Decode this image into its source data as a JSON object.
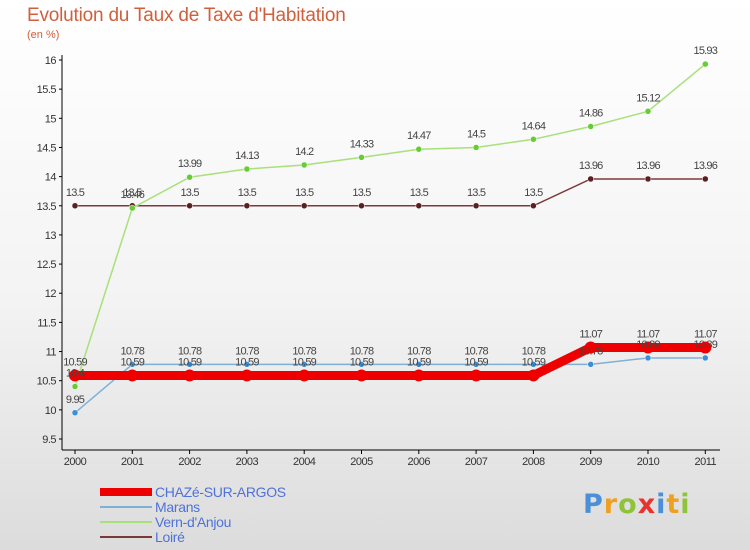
{
  "title": "Evolution du Taux de Taxe d'Habitation",
  "subtitle": "(en %)",
  "logo": {
    "text": "Proxiti",
    "letters": [
      {
        "char": "P",
        "color": "#4a8fd8"
      },
      {
        "char": "r",
        "color": "#f0a020"
      },
      {
        "char": "o",
        "color": "#8fc43a"
      },
      {
        "char": "x",
        "color": "#e8322e"
      },
      {
        "char": "i",
        "color": "#4a8fd8"
      },
      {
        "char": "t",
        "color": "#f0a020"
      },
      {
        "char": "i",
        "color": "#8fc43a"
      }
    ]
  },
  "chart_data": {
    "type": "line",
    "title": "Evolution du Taux de Taxe d'Habitation",
    "ylabel": "(en %)",
    "xlabel": "",
    "categories": [
      "2000",
      "2001",
      "2002",
      "2003",
      "2004",
      "2005",
      "2006",
      "2007",
      "2008",
      "2009",
      "2010",
      "2011"
    ],
    "ylim": [
      9.5,
      16
    ],
    "yticks": [
      "9.5",
      "10",
      "10.5",
      "11",
      "11.5",
      "12",
      "12.5",
      "13",
      "13.5",
      "14",
      "14.5",
      "15",
      "15.5",
      "16"
    ],
    "grid": false,
    "legend_position": "bottom-left",
    "series": [
      {
        "name": "CHAZé-SUR-ARGOS",
        "color": "#ee0000",
        "thick": true,
        "values": [
          10.59,
          10.59,
          10.59,
          10.59,
          10.59,
          10.59,
          10.59,
          10.59,
          10.59,
          11.07,
          11.07,
          11.07
        ],
        "labels": [
          "10.59",
          "10.59",
          "10.59",
          "10.59",
          "10.59",
          "10.59",
          "10.59",
          "10.59",
          "10.59",
          "11.07",
          "11.07",
          "11.07"
        ]
      },
      {
        "name": "Marans",
        "color": "#7fb0d6",
        "marker": "#3b8fd9",
        "thick": false,
        "values": [
          9.95,
          10.78,
          10.78,
          10.78,
          10.78,
          10.78,
          10.78,
          10.78,
          10.78,
          10.78,
          10.89,
          10.89
        ],
        "labels": [
          "9.95",
          "10.78",
          "10.78",
          "10.78",
          "10.78",
          "10.78",
          "10.78",
          "10.78",
          "10.78",
          "10.78",
          "10.89",
          "10.89"
        ]
      },
      {
        "name": "Vern-d'Anjou",
        "color": "#a8e07a",
        "marker": "#66cc33",
        "thick": false,
        "values": [
          10.4,
          13.46,
          13.99,
          14.13,
          14.2,
          14.33,
          14.47,
          14.5,
          14.64,
          14.86,
          15.12,
          15.93
        ],
        "labels": [
          "10.4",
          "13.46",
          "13.99",
          "14.13",
          "14.2",
          "14.33",
          "14.47",
          "14.5",
          "14.64",
          "14.86",
          "15.12",
          "15.93"
        ]
      },
      {
        "name": "Loiré",
        "color": "#7a3a3a",
        "marker": "#5a1f1f",
        "thick": false,
        "values": [
          13.5,
          13.5,
          13.5,
          13.5,
          13.5,
          13.5,
          13.5,
          13.5,
          13.5,
          13.96,
          13.96,
          13.96
        ],
        "labels": [
          "13.5",
          "13.5",
          "13.5",
          "13.5",
          "13.5",
          "13.5",
          "13.5",
          "13.5",
          "13.5",
          "13.96",
          "13.96",
          "13.96"
        ]
      }
    ]
  }
}
